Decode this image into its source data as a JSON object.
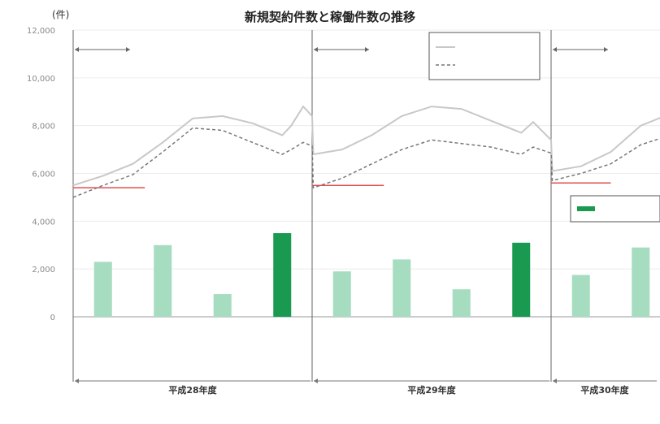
{
  "chart_data": {
    "type": "bar",
    "title": "新規契約件数と稼働件数の推移",
    "ylabel": "(件)",
    "ylim": [
      0,
      12000
    ],
    "y_ticks": [
      "0",
      "2,000",
      "4,000",
      "6,000",
      "8,000",
      "10,000",
      "12,000"
    ],
    "fiscal_years": [
      "平成28年度",
      "平成29年度",
      "平成30年度"
    ],
    "categories": [
      "",
      "",
      "",
      "",
      "",
      "",
      "",
      "",
      "",
      ""
    ],
    "bar_values": [
      2300,
      3000,
      950,
      3500,
      1900,
      2400,
      1150,
      3100,
      1750,
      2900
    ],
    "bar_highlight": [
      false,
      false,
      false,
      true,
      false,
      false,
      false,
      true,
      false,
      false
    ],
    "bar_color": "#a6dcc0",
    "bar_highlight_color": "#1a9a50",
    "line_solid": {
      "color": "#c8c8c8",
      "points": [
        [
          0,
          5500
        ],
        [
          0.5,
          5900
        ],
        [
          1,
          6400
        ],
        [
          1.5,
          7300
        ],
        [
          2,
          8300
        ],
        [
          2.5,
          8400
        ],
        [
          3,
          8100
        ],
        [
          3.5,
          7600
        ],
        [
          3.65,
          8000
        ],
        [
          3.85,
          8800
        ],
        [
          4,
          8400
        ],
        [
          4.02,
          6800
        ],
        [
          4.5,
          7000
        ],
        [
          5,
          7600
        ],
        [
          5.5,
          8400
        ],
        [
          6,
          8800
        ],
        [
          6.5,
          8700
        ],
        [
          7,
          8200
        ],
        [
          7.5,
          7700
        ],
        [
          7.7,
          8150
        ],
        [
          8,
          7400
        ],
        [
          8.02,
          6100
        ],
        [
          8.5,
          6300
        ],
        [
          9,
          6900
        ],
        [
          9.5,
          8000
        ],
        [
          10,
          8500
        ]
      ]
    },
    "line_dashed": {
      "color": "#777777",
      "points": [
        [
          0,
          5000
        ],
        [
          0.5,
          5500
        ],
        [
          1,
          5950
        ],
        [
          1.5,
          6900
        ],
        [
          2,
          7900
        ],
        [
          2.5,
          7800
        ],
        [
          3,
          7300
        ],
        [
          3.5,
          6800
        ],
        [
          3.65,
          7000
        ],
        [
          3.85,
          7300
        ],
        [
          4,
          7150
        ],
        [
          4.02,
          5400
        ],
        [
          4.5,
          5800
        ],
        [
          5,
          6400
        ],
        [
          5.5,
          7000
        ],
        [
          6,
          7400
        ],
        [
          6.5,
          7250
        ],
        [
          7,
          7100
        ],
        [
          7.5,
          6800
        ],
        [
          7.7,
          7100
        ],
        [
          8,
          6850
        ],
        [
          8.02,
          5700
        ],
        [
          8.5,
          6000
        ],
        [
          9,
          6400
        ],
        [
          9.5,
          7200
        ],
        [
          10,
          7600
        ]
      ]
    },
    "ref_line_values": [
      5400,
      5500,
      5600
    ]
  },
  "legend": {
    "solid_label": "",
    "dashed_label": "",
    "bar_label": ""
  },
  "annotations": {
    "period_top": [
      "",
      "",
      ""
    ],
    "period_sub": [
      "",
      "",
      ""
    ],
    "red_notes": [
      "",
      "",
      ""
    ],
    "green_notes": [
      "",
      ""
    ]
  },
  "source_note": ""
}
